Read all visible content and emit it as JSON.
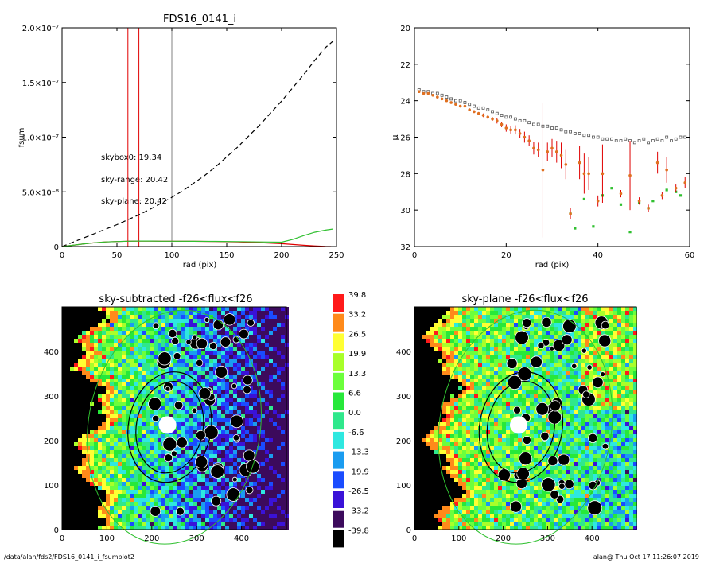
{
  "footer": {
    "path": "/data/alan/fds2/FDS16_0141_i_fsumplot2",
    "user_time": "alan@  Thu Oct 17 11:26:07 2019"
  },
  "chart_data": [
    {
      "type": "line",
      "title": "FDS16_0141_i",
      "xlabel": "rad (pix)",
      "ylabel": "fsum",
      "xlim": [
        0,
        250
      ],
      "ylim": [
        0,
        2e-07
      ],
      "xticks": [
        "0",
        "50",
        "100",
        "150",
        "200",
        "250"
      ],
      "yticks": [
        {
          "value": 0,
          "label": "0"
        },
        {
          "value": 5e-08,
          "label": "5.0×10⁻⁸"
        },
        {
          "value": 1e-07,
          "label": "1.0×10⁻⁷"
        },
        {
          "value": 1.5e-07,
          "label": "1.5×10⁻⁷"
        },
        {
          "value": 2e-07,
          "label": "2.0×10⁻⁷"
        }
      ],
      "vlines": [
        {
          "x": 60,
          "color": "#e00000"
        },
        {
          "x": 70,
          "color": "#e00000"
        },
        {
          "x": 100,
          "color": "#808080"
        }
      ],
      "annotations": [
        {
          "text": "skybox0: 19.34",
          "color": "#000000"
        },
        {
          "text": "sky-range: 20.42",
          "color": "#e00000"
        },
        {
          "text": "sky-plane: 20.42",
          "color": "#30c030"
        }
      ],
      "series": [
        {
          "style": "dashed",
          "color": "#000000",
          "x": [
            0,
            10,
            20,
            30,
            40,
            50,
            60,
            70,
            80,
            90,
            100,
            110,
            120,
            130,
            140,
            150,
            160,
            170,
            180,
            190,
            200,
            210,
            220,
            230,
            240,
            247
          ],
          "y": [
            0,
            4e-09,
            8e-09,
            1.2e-08,
            1.6e-08,
            2e-08,
            2.45e-08,
            2.9e-08,
            3.4e-08,
            3.95e-08,
            4.5e-08,
            5.1e-08,
            5.8e-08,
            6.5e-08,
            7.3e-08,
            8.2e-08,
            9.1e-08,
            1.01e-07,
            1.11e-07,
            1.22e-07,
            1.33e-07,
            1.45e-07,
            1.57e-07,
            1.7e-07,
            1.82e-07,
            1.88e-07
          ]
        },
        {
          "style": "solid",
          "color": "#e00000",
          "x": [
            0,
            10,
            20,
            30,
            40,
            50,
            60,
            70,
            80,
            90,
            100,
            120,
            140,
            160,
            180,
            200,
            210,
            220,
            230,
            240,
            245
          ],
          "y": [
            0,
            1.2e-09,
            2.5e-09,
            3.5e-09,
            4.2e-09,
            4.6e-09,
            4.9e-09,
            5e-09,
            5e-09,
            4.9e-09,
            4.9e-09,
            4.8e-09,
            4.6e-09,
            4.2e-09,
            3.6e-09,
            2.6e-09,
            1.9e-09,
            1.2e-09,
            6e-10,
            1e-10,
            0
          ]
        },
        {
          "style": "solid",
          "color": "#30c030",
          "x": [
            0,
            10,
            20,
            30,
            40,
            50,
            60,
            70,
            80,
            90,
            100,
            120,
            140,
            160,
            180,
            200,
            210,
            220,
            230,
            240,
            247
          ],
          "y": [
            0,
            1.2e-09,
            2.5e-09,
            3.5e-09,
            4.2e-09,
            4.6e-09,
            4.9e-09,
            5e-09,
            5e-09,
            4.9e-09,
            4.9e-09,
            4.8e-09,
            4.7e-09,
            4.5e-09,
            4.2e-09,
            4e-09,
            6.5e-09,
            1e-08,
            1.3e-08,
            1.5e-08,
            1.6e-08
          ]
        }
      ]
    },
    {
      "type": "scatter",
      "title": "",
      "xlabel": "rad (pix)",
      "ylabel": "μ",
      "xlim": [
        0,
        60
      ],
      "ylim": [
        32,
        20
      ],
      "xticks": [
        "0",
        "20",
        "40",
        "60"
      ],
      "yticks": [
        "20",
        "22",
        "24",
        "26",
        "28",
        "30",
        "32"
      ],
      "series": [
        {
          "marker": "square",
          "color": "#000000",
          "x": [
            1,
            2,
            3,
            4,
            5,
            6,
            7,
            8,
            9,
            10,
            11,
            12,
            13,
            14,
            15,
            16,
            17,
            18,
            19,
            20,
            21,
            22,
            23,
            24,
            25,
            26,
            27,
            28,
            29,
            30,
            31,
            32,
            33,
            34,
            35,
            36,
            37,
            38,
            39,
            40,
            41,
            42,
            43,
            44,
            45,
            46,
            47,
            48,
            49,
            50,
            51,
            52,
            53,
            54,
            55,
            56,
            57,
            58,
            59
          ],
          "y": [
            23.4,
            23.5,
            23.5,
            23.6,
            23.6,
            23.7,
            23.8,
            23.9,
            24.0,
            24.0,
            24.1,
            24.2,
            24.3,
            24.4,
            24.4,
            24.5,
            24.6,
            24.7,
            24.8,
            24.9,
            24.9,
            25.0,
            25.1,
            25.1,
            25.2,
            25.3,
            25.3,
            25.4,
            25.4,
            25.5,
            25.5,
            25.6,
            25.7,
            25.7,
            25.8,
            25.8,
            25.9,
            25.9,
            26.0,
            26.0,
            26.1,
            26.1,
            26.1,
            26.2,
            26.2,
            26.1,
            26.2,
            26.3,
            26.2,
            26.1,
            26.3,
            26.2,
            26.1,
            26.2,
            26.0,
            26.2,
            26.1,
            26.0,
            26.0
          ]
        },
        {
          "marker": "square",
          "color": "#30c030",
          "x": [
            34,
            35,
            37,
            39,
            41,
            43,
            45,
            47,
            49,
            51,
            52,
            55,
            57,
            58
          ],
          "y": [
            30.2,
            31.0,
            29.4,
            30.9,
            29.2,
            28.8,
            29.7,
            31.2,
            29.6,
            29.9,
            29.5,
            28.9,
            29.0,
            29.2
          ]
        },
        {
          "marker": "dot-errorbar",
          "color": "#e07020",
          "x": [
            1,
            2,
            3,
            4,
            5,
            6,
            7,
            8,
            9,
            10,
            11,
            12,
            13,
            14,
            15,
            16,
            17,
            18,
            19,
            20,
            21,
            22,
            23,
            24,
            25,
            26,
            27,
            28,
            29,
            30,
            31,
            32,
            33,
            34,
            36,
            37,
            38,
            40,
            41,
            45,
            47,
            49,
            51,
            53,
            54,
            55,
            57,
            59
          ],
          "y": [
            23.5,
            23.6,
            23.6,
            23.7,
            23.8,
            23.9,
            24.0,
            24.1,
            24.2,
            24.3,
            24.3,
            24.5,
            24.6,
            24.7,
            24.8,
            24.9,
            25.0,
            25.1,
            25.3,
            25.5,
            25.6,
            25.6,
            25.8,
            26.0,
            26.2,
            26.6,
            26.7,
            27.8,
            26.8,
            26.6,
            26.8,
            27.0,
            27.5,
            30.2,
            27.4,
            28.0,
            28.0,
            29.5,
            28.0,
            29.1,
            28.1,
            29.5,
            29.9,
            27.4,
            29.2,
            27.8,
            28.8,
            28.5
          ],
          "err": [
            0.05,
            0.05,
            0.05,
            0.05,
            0.05,
            0.05,
            0.05,
            0.05,
            0.05,
            0.05,
            0.05,
            0.08,
            0.08,
            0.08,
            0.1,
            0.1,
            0.1,
            0.15,
            0.15,
            0.2,
            0.2,
            0.25,
            0.25,
            0.3,
            0.3,
            0.35,
            0.4,
            3.7,
            0.5,
            0.5,
            0.6,
            0.7,
            0.8,
            0.3,
            0.9,
            1.1,
            0.9,
            0.3,
            1.6,
            0.2,
            1.9,
            0.2,
            0.2,
            0.6,
            0.2,
            0.7,
            0.2,
            0.3
          ]
        }
      ]
    },
    {
      "type": "heatmap",
      "title": "sky-subtracted -f26<flux<f26",
      "xlim": [
        0,
        500
      ],
      "ylim": [
        0,
        500
      ],
      "xticks": [
        "0",
        "100",
        "200",
        "300",
        "400"
      ],
      "yticks": [
        "0",
        "100",
        "200",
        "300",
        "400"
      ]
    },
    {
      "type": "heatmap",
      "title": "sky-plane -f26<flux<f26",
      "xlim": [
        0,
        500
      ],
      "ylim": [
        0,
        500
      ],
      "xticks": [
        "0",
        "100",
        "200",
        "300",
        "400"
      ],
      "yticks": [
        "0",
        "100",
        "200",
        "300",
        "400"
      ]
    }
  ],
  "colorbar": {
    "labels": [
      "39.8",
      "33.2",
      "26.5",
      "19.9",
      "13.3",
      "6.6",
      "0.0",
      "-6.6",
      "-13.3",
      "-19.9",
      "-26.5",
      "-33.2",
      "-39.8"
    ],
    "colors": [
      "#ff1a1a",
      "#ff8a1a",
      "#ffff33",
      "#a8ff2a",
      "#6cff3c",
      "#27e83a",
      "#2fe88c",
      "#2ee8e0",
      "#1a9cf0",
      "#1a4cff",
      "#3a12d8",
      "#3c0a5c",
      "#000000"
    ]
  }
}
